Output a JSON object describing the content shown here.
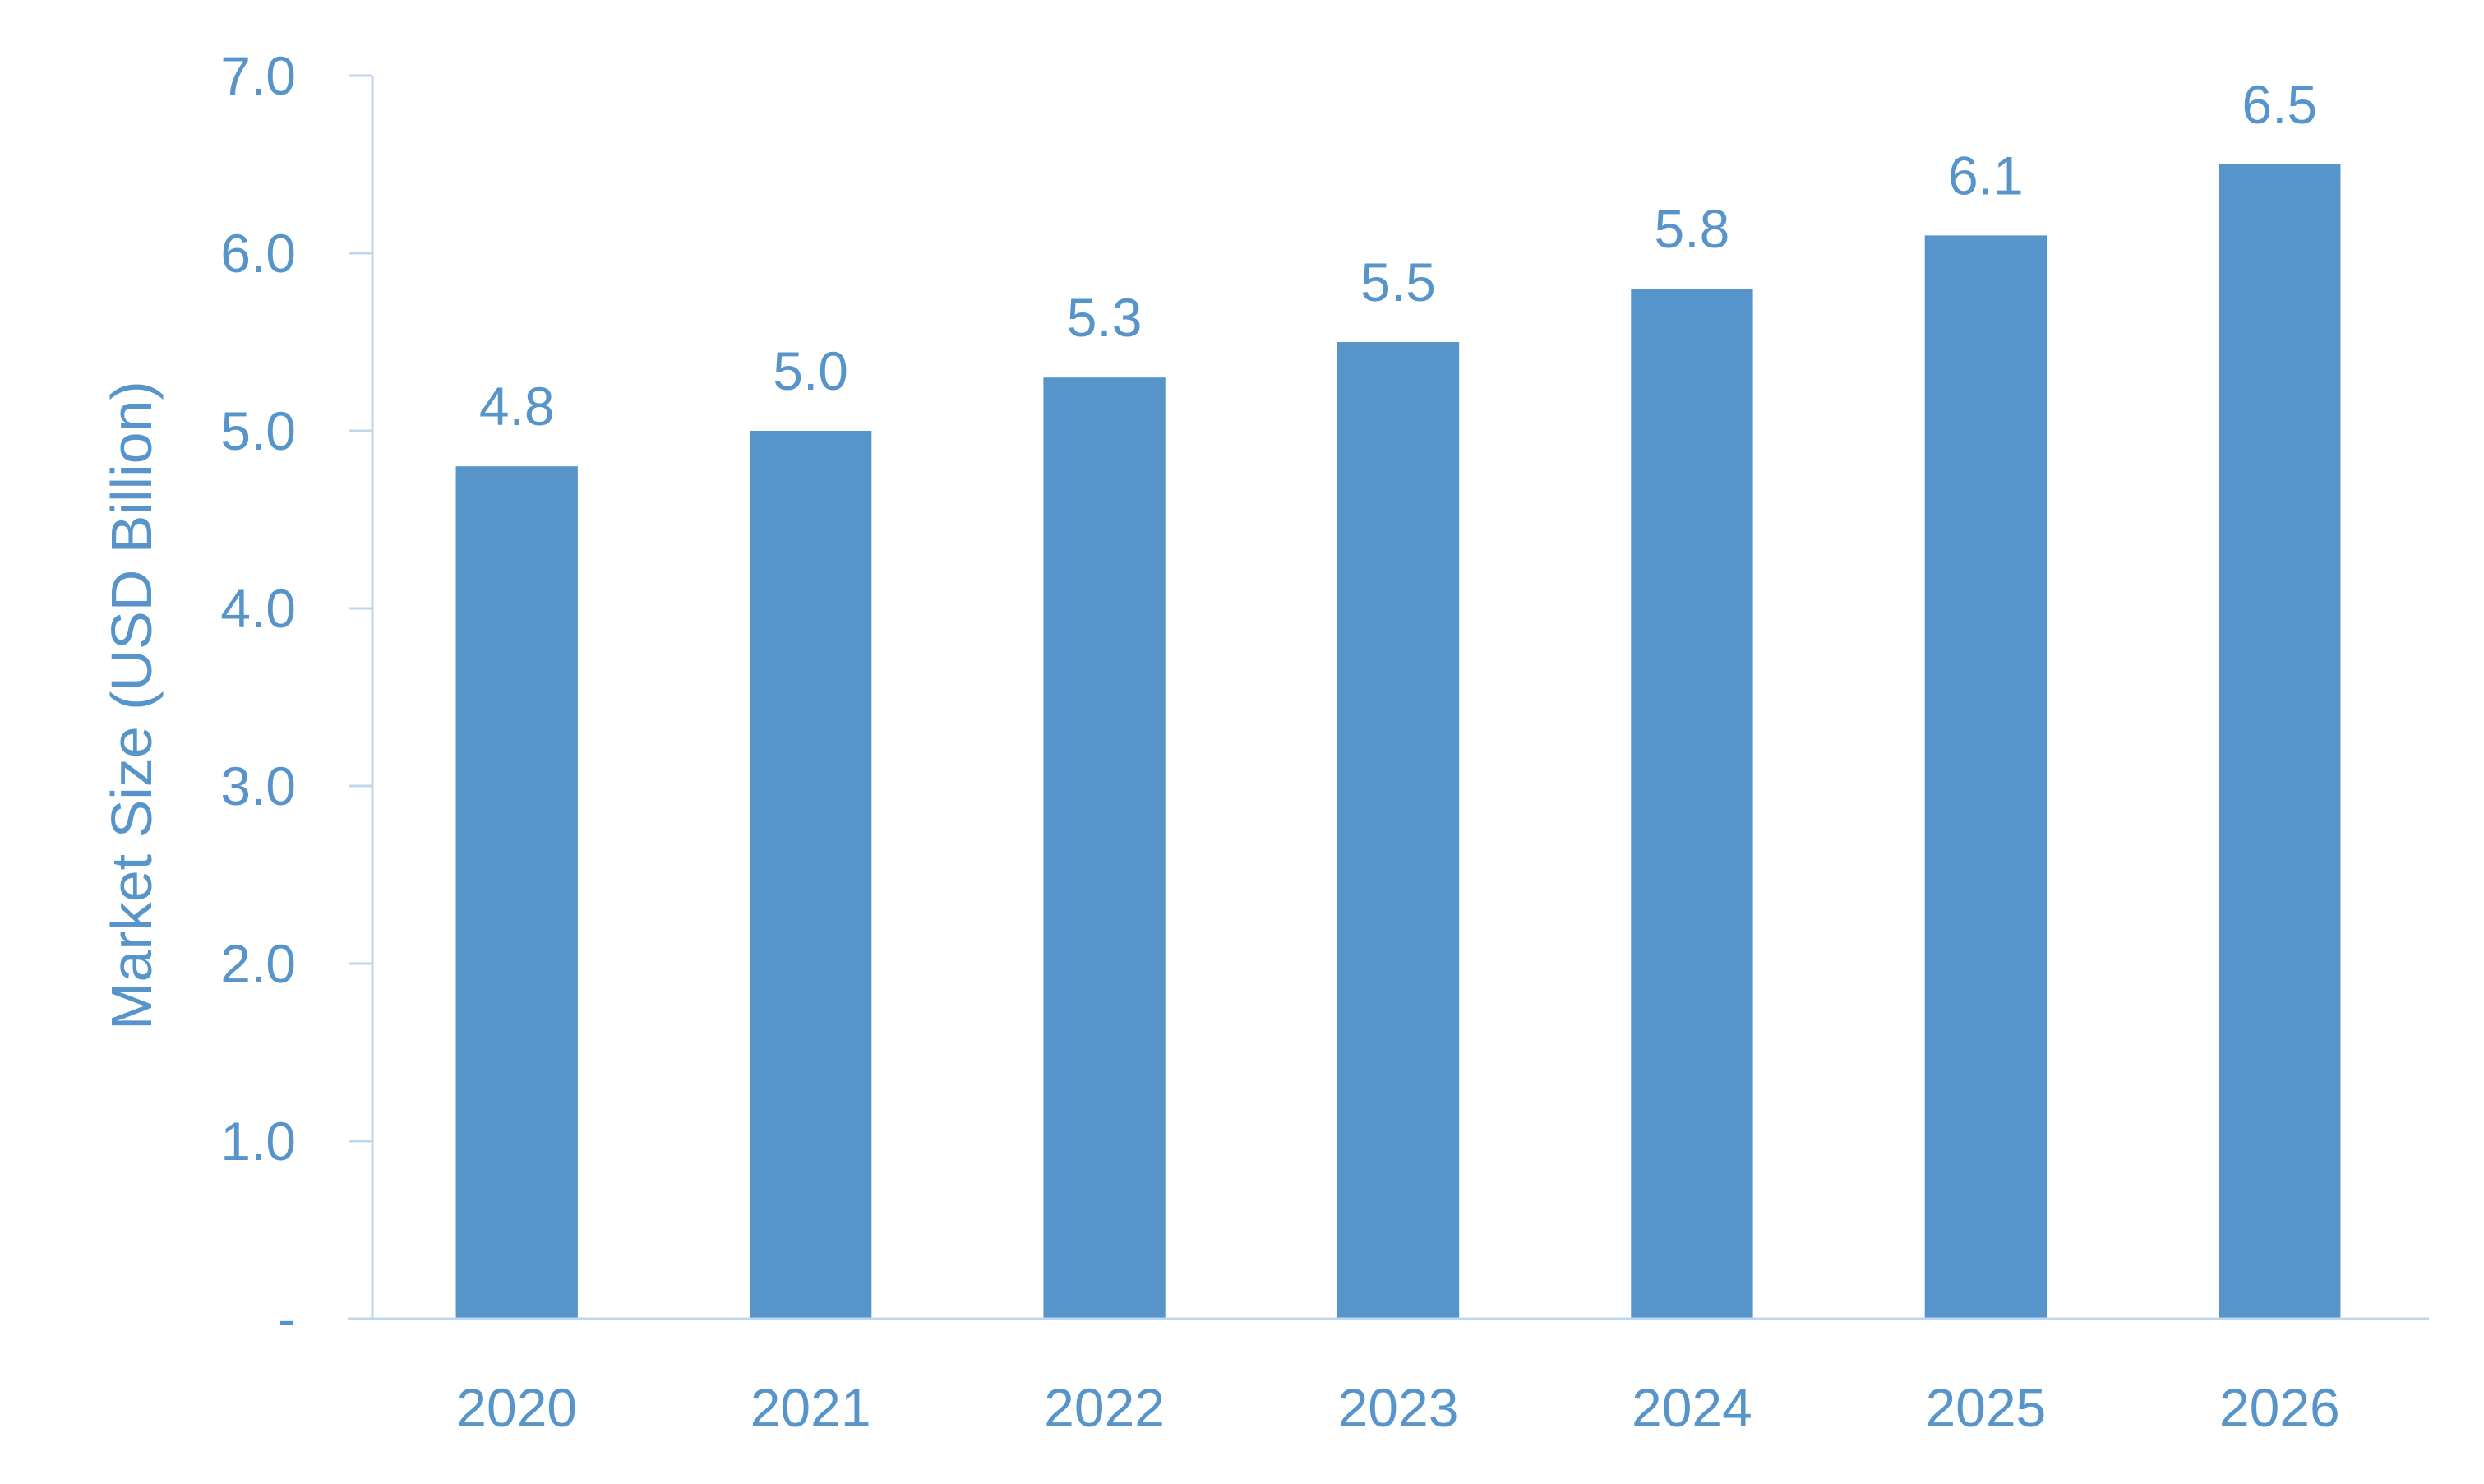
{
  "chart_data": {
    "type": "bar",
    "title": "",
    "xlabel": "",
    "ylabel": "Market Size (USD Billion)",
    "categories": [
      "2020",
      "2021",
      "2022",
      "2023",
      "2024",
      "2025",
      "2026"
    ],
    "values": [
      4.8,
      5.0,
      5.3,
      5.5,
      5.8,
      6.1,
      6.5
    ],
    "data_labels": [
      "4.8",
      "5.0",
      "5.3",
      "5.5",
      "5.8",
      "6.1",
      "6.5"
    ],
    "ylim": [
      0,
      7
    ],
    "yticks": [
      0,
      1,
      2,
      3,
      4,
      5,
      6,
      7
    ],
    "ytick_labels": [
      "-",
      "1.0",
      "2.0",
      "3.0",
      "4.0",
      "5.0",
      "6.0",
      "7.0"
    ],
    "grid": false,
    "legend": "none",
    "colors": {
      "bar": "#5694CA",
      "text": "#5694CA",
      "axis": "#BDD7EE"
    }
  }
}
